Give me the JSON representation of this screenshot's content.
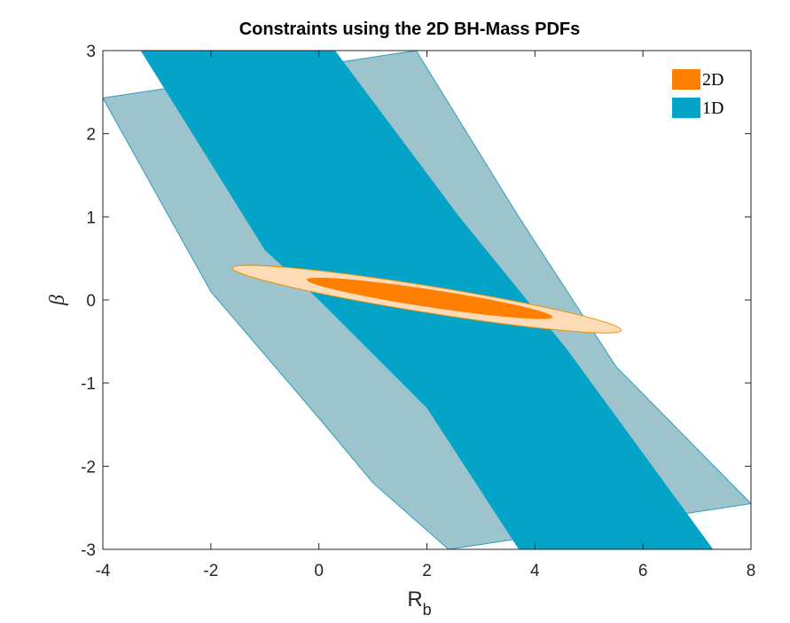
{
  "chart_data": {
    "type": "contour",
    "title": "Constraints using the 2D BH-Mass PDFs",
    "xlabel": "R",
    "xlabel_sub": "b",
    "ylabel": "β",
    "xlim": [
      -4,
      8
    ],
    "ylim": [
      -3,
      3
    ],
    "xticks": [
      -4,
      -2,
      0,
      2,
      4,
      6,
      8
    ],
    "yticks": [
      -3,
      -2,
      -1,
      0,
      1,
      2,
      3
    ],
    "legend_position": "top-right",
    "series": [
      {
        "name": "2D",
        "color": "#ff7f00",
        "outer_color": "#ffdcb8",
        "edge_color": "#e8900a",
        "regions": [
          {
            "level": "outer",
            "center": [
              2.0,
              0.01
            ],
            "endpoints": [
              [
                -1.6,
                0.38
              ],
              [
                5.6,
                -0.37
              ]
            ]
          },
          {
            "level": "inner",
            "center": [
              2.05,
              0.02
            ],
            "endpoints": [
              [
                -0.25,
                0.22
              ],
              [
                4.3,
                -0.23
              ]
            ]
          }
        ]
      },
      {
        "name": "1D",
        "color": "#04a3c8",
        "outer_color": "#9dc3cd",
        "edge_color": "#2a9ec0",
        "regions": [
          {
            "level": "outer",
            "boundary_left": [
              [
                -4.0,
                2.43
              ],
              [
                -2.0,
                0.1
              ],
              [
                0.0,
                -1.42
              ],
              [
                1.0,
                -2.2
              ],
              [
                2.4,
                -3.0
              ]
            ],
            "boundary_right": [
              [
                1.8,
                3.0
              ],
              [
                3.7,
                1.0
              ],
              [
                5.5,
                -0.8
              ],
              [
                8.0,
                -2.45
              ]
            ]
          },
          {
            "level": "inner",
            "boundary_left": [
              [
                -3.3,
                3.0
              ],
              [
                -1.0,
                0.6
              ],
              [
                0.0,
                0.0
              ],
              [
                2.0,
                -1.3
              ],
              [
                3.7,
                -3.0
              ]
            ],
            "boundary_right": [
              [
                0.3,
                3.0
              ],
              [
                2.6,
                1.0
              ],
              [
                4.6,
                -0.6
              ],
              [
                7.3,
                -3.0
              ]
            ]
          }
        ]
      }
    ]
  }
}
